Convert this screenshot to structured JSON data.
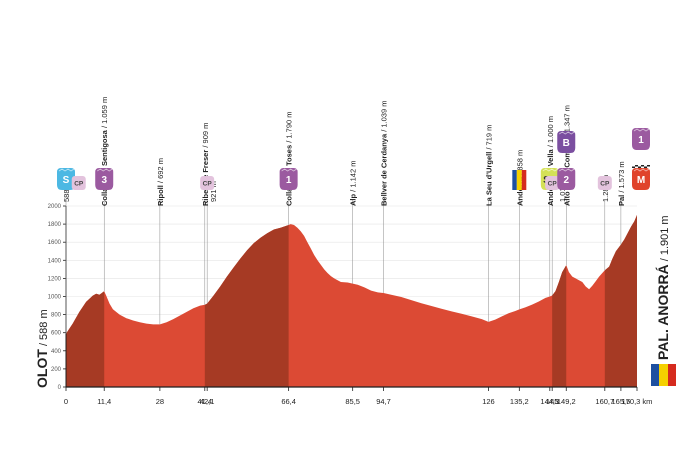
{
  "chart_data": {
    "type": "area",
    "title": "",
    "xlabel": "",
    "ylabel": "",
    "xlim": [
      0,
      170.3
    ],
    "ylim": [
      0,
      2000
    ],
    "grid": true,
    "y_ticks": [
      "0",
      "200",
      "400",
      "600",
      "800",
      "1000",
      "1200",
      "1400",
      "1600",
      "1800",
      "2000"
    ],
    "x_ticks": [
      {
        "km": 0,
        "label": "0"
      },
      {
        "km": 11.4,
        "label": "11,4"
      },
      {
        "km": 28,
        "label": "28"
      },
      {
        "km": 41.4,
        "label": "41,4"
      },
      {
        "km": 42.1,
        "label": "42,1"
      },
      {
        "km": 66.4,
        "label": "66,4"
      },
      {
        "km": 85.5,
        "label": "85,5"
      },
      {
        "km": 94.7,
        "label": "94,7"
      },
      {
        "km": 126,
        "label": "126"
      },
      {
        "km": 135.2,
        "label": "135,2"
      },
      {
        "km": 144.3,
        "label": "144,3"
      },
      {
        "km": 145,
        "label": "145"
      },
      {
        "km": 149.2,
        "label": "149,2"
      },
      {
        "km": 160.7,
        "label": "160,7"
      },
      {
        "km": 165.5,
        "label": "165,5"
      },
      {
        "km": 170.3,
        "label": "170,3 km"
      }
    ],
    "series": [
      {
        "x": [
          0,
          2,
          4,
          6,
          8,
          9,
          10,
          11.4,
          12,
          13,
          14,
          16,
          18,
          20,
          22,
          24,
          26,
          28,
          30,
          32,
          34,
          36,
          38,
          40,
          41.4,
          42.1,
          44,
          46,
          48,
          50,
          52,
          54,
          56,
          58,
          60,
          62,
          64,
          66.4,
          67,
          68,
          69,
          70,
          71,
          72,
          73,
          74,
          75,
          76,
          77,
          78,
          79,
          80,
          81,
          82,
          84,
          85.5,
          87,
          89,
          91,
          93,
          94.7,
          97,
          100,
          103,
          106,
          109,
          112,
          115,
          118,
          121,
          124,
          126,
          128,
          130,
          132,
          134,
          135.2,
          137,
          139,
          141,
          143,
          144.3,
          145,
          146,
          147,
          148,
          149.2,
          150,
          151,
          152,
          153,
          154,
          155,
          156,
          157,
          158,
          159,
          160.7,
          162,
          163,
          164,
          165.5,
          166.5,
          167.5,
          168.5,
          169.5,
          170.3
        ],
        "y": [
          588,
          700,
          830,
          940,
          1010,
          1030,
          1020,
          1059,
          1010,
          920,
          860,
          800,
          760,
          735,
          715,
          700,
          692,
          692,
          715,
          750,
          790,
          830,
          870,
          900,
          909,
          921,
          1010,
          1110,
          1220,
          1320,
          1420,
          1510,
          1590,
          1650,
          1700,
          1740,
          1760,
          1790,
          1800,
          1790,
          1760,
          1720,
          1670,
          1600,
          1530,
          1460,
          1400,
          1350,
          1300,
          1260,
          1225,
          1200,
          1180,
          1160,
          1155,
          1142,
          1130,
          1100,
          1065,
          1045,
          1039,
          1020,
          995,
          960,
          925,
          895,
          865,
          835,
          810,
          780,
          750,
          719,
          745,
          780,
          815,
          840,
          858,
          880,
          910,
          945,
          985,
          1000,
          1011,
          1060,
          1160,
          1270,
          1347,
          1270,
          1220,
          1200,
          1180,
          1160,
          1110,
          1080,
          1120,
          1170,
          1220,
          1289,
          1330,
          1420,
          1500,
          1573,
          1630,
          1700,
          1770,
          1830,
          1901
        ]
      }
    ],
    "climb_segments": [
      {
        "from": 0,
        "to": 11.4
      },
      {
        "from": 41.4,
        "to": 66.4
      },
      {
        "from": 145,
        "to": 149.2
      },
      {
        "from": 160.7,
        "to": 170.3
      }
    ],
    "annotations": [
      {
        "km": 0,
        "text": "588 m",
        "lead": 0,
        "ml": 34
      },
      {
        "km": 11.4,
        "text": "Collada de",
        "text2": "Sentigosa / 1.059 m",
        "bold": "Collada de Sentigosa",
        "ml": 30
      },
      {
        "km": 28,
        "text": "Ripoll / 692 m",
        "bold": "Ripoll",
        "ml": 30
      },
      {
        "km": 41.4,
        "text": "Ribes de Freser / 909 m",
        "bold": "Ribes de Freser",
        "ml": 30
      },
      {
        "km": 42.1,
        "text": "921 m",
        "lead": 6,
        "ml": 34
      },
      {
        "km": 66.4,
        "text": "Collada de Toses / 1.790 m",
        "bold": "Collada de Toses",
        "ml": 30
      },
      {
        "km": 85.5,
        "text": "Alp / 1.142 m",
        "bold": "Alp",
        "ml": 30
      },
      {
        "km": 94.7,
        "text": "Bellver de Cerdanya / 1.039 m",
        "bold": "Bellver de Cerdanya",
        "ml": 30
      },
      {
        "km": 126,
        "text": "La Seu d'Urgell / 719 m",
        "bold": "La Seu d'Urgell",
        "ml": 30
      },
      {
        "km": 135.2,
        "text": "Andorra / 858 m",
        "bold": "Andorra",
        "ml": 30
      },
      {
        "km": 144.3,
        "text": "Andorra la Vella / 1.000 m",
        "bold": "Andorra la Vella",
        "ml": 30
      },
      {
        "km": 145,
        "text": "1.011 m",
        "lead": 10,
        "ml": 34
      },
      {
        "km": 149.2,
        "text": "Alto de",
        "text2": "La Comella / 1.347 m",
        "bold": "Alto de La Comella",
        "ml": 30
      },
      {
        "km": 160.7,
        "text": "1.289 m",
        "lead": 0,
        "ml": 34
      },
      {
        "km": 165.5,
        "text": "Pal / 1.573 m",
        "bold": "Pal",
        "ml": 30
      }
    ],
    "markers": [
      {
        "name": "start-marker",
        "kind": "start",
        "label": "S",
        "km": 0,
        "color": "#4cb8e3"
      },
      {
        "name": "cp-marker-1",
        "kind": "cp",
        "label": "CP",
        "km": 3.8,
        "color": "#e3c3dd"
      },
      {
        "name": "kom-marker-sentigosa",
        "kind": "kom",
        "label": "3",
        "km": 11.4,
        "color": "#9b5aa0"
      },
      {
        "name": "cp-marker-2",
        "kind": "cp",
        "label": "CP",
        "km": 42.1,
        "color": "#e3c3dd"
      },
      {
        "name": "kom-marker-toses",
        "kind": "kom",
        "label": "1",
        "km": 66.4,
        "color": "#9b5aa0"
      },
      {
        "name": "andorra-flag-icon",
        "kind": "flag",
        "label": "",
        "km": 135.2,
        "color": ""
      },
      {
        "name": "sprint-marker",
        "kind": "sprint",
        "label": "SP",
        "km": 144.3,
        "color": "#d4e157"
      },
      {
        "name": "cp-marker-3",
        "kind": "cp",
        "label": "CP",
        "km": 145,
        "color": "#e3c3dd"
      },
      {
        "name": "bonus-marker-comella",
        "kind": "bonus",
        "label": "B",
        "km": 149.2,
        "color": "#7b4fa0"
      },
      {
        "name": "kom-marker-comella",
        "kind": "kom",
        "label": "2",
        "km": 149.2,
        "color": "#9b5aa0"
      },
      {
        "name": "cp-marker-4",
        "kind": "cp",
        "label": "CP",
        "km": 160.7,
        "color": "#e3c3dd"
      },
      {
        "name": "kom-marker-pal",
        "kind": "kom",
        "label": "1",
        "km": 170.3,
        "color": "#9b5aa0"
      },
      {
        "name": "finish-marker",
        "kind": "finish",
        "label": "M",
        "km": 170.3,
        "color": "#e0432b"
      }
    ],
    "start_label": {
      "bold": "OLOT",
      "rest": " / 588 m"
    },
    "finish_label": {
      "bold": "PAL. ANORRÁ",
      "rest": " / 1.901 m"
    },
    "colors": {
      "profile": "#dc4a34",
      "profile_dark": "#a63a24",
      "grid": "#e5e5e5",
      "axis": "#1e1e1e",
      "label": "#222222"
    }
  }
}
